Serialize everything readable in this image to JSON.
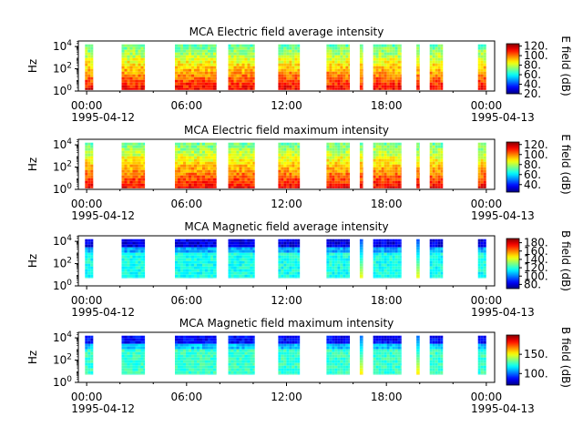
{
  "chart_data": [
    {
      "type": "heatmap",
      "title": "MCA  Electric field average intensity",
      "ylabel": "Hz",
      "colorbar_label": "E field (dB)",
      "colorbar_ticks": [
        "20.",
        "40.",
        "60.",
        "80.",
        "100.",
        "120."
      ],
      "colorbar_range": [
        20,
        125
      ],
      "y_ticks": [
        "10^0",
        "10^2",
        "10^4"
      ],
      "y_range_log10": [
        0,
        4.5
      ],
      "x_ticks": [
        "00:00",
        "06:00",
        "12:00",
        "18:00",
        "00:00"
      ],
      "x_dates": [
        "1995-04-12",
        "1995-04-13"
      ],
      "x_range_hours": [
        -0.5,
        24.5
      ],
      "data_intervals_hours": [
        [
          -0.1,
          0.4
        ],
        [
          2.1,
          3.5
        ],
        [
          5.3,
          7.8
        ],
        [
          8.5,
          10.1
        ],
        [
          11.5,
          12.8
        ],
        [
          14.4,
          15.8
        ],
        [
          16.4,
          16.6
        ],
        [
          17.2,
          18.9
        ],
        [
          19.8,
          20.0
        ],
        [
          20.6,
          21.4
        ],
        [
          23.5,
          24.0
        ]
      ],
      "data_freq_range_log10": [
        0.1,
        4.2
      ],
      "dominant_value_range_db": [
        60,
        120
      ],
      "colormap": "jet"
    },
    {
      "type": "heatmap",
      "title": "MCA  Electric field maximum intensity",
      "ylabel": "Hz",
      "colorbar_label": "E field (dB)",
      "colorbar_ticks": [
        "40.",
        "60.",
        "80.",
        "100.",
        "120."
      ],
      "colorbar_range": [
        25,
        125
      ],
      "y_ticks": [
        "10^0",
        "10^2",
        "10^4"
      ],
      "y_range_log10": [
        0,
        4.5
      ],
      "x_ticks": [
        "00:00",
        "06:00",
        "12:00",
        "18:00",
        "00:00"
      ],
      "x_dates": [
        "1995-04-12",
        "1995-04-13"
      ],
      "x_range_hours": [
        -0.5,
        24.5
      ],
      "data_intervals_hours": [
        [
          -0.1,
          0.4
        ],
        [
          2.1,
          3.5
        ],
        [
          5.3,
          7.8
        ],
        [
          8.5,
          10.1
        ],
        [
          11.5,
          12.8
        ],
        [
          14.4,
          15.8
        ],
        [
          16.4,
          16.6
        ],
        [
          17.2,
          18.9
        ],
        [
          19.8,
          20.0
        ],
        [
          20.6,
          21.4
        ],
        [
          23.5,
          24.0
        ]
      ],
      "data_freq_range_log10": [
        0.1,
        4.2
      ],
      "dominant_value_range_db": [
        65,
        120
      ],
      "colormap": "jet"
    },
    {
      "type": "heatmap",
      "title": "MCA  Magnetic field average intensity",
      "ylabel": "Hz",
      "colorbar_label": "B field (dB)",
      "colorbar_ticks": [
        "80.",
        "100.",
        "120.",
        "140.",
        "160.",
        "180."
      ],
      "colorbar_range": [
        70,
        190
      ],
      "y_ticks": [
        "10^0",
        "10^2",
        "10^4"
      ],
      "y_range_log10": [
        0,
        4.5
      ],
      "x_ticks": [
        "00:00",
        "06:00",
        "12:00",
        "18:00",
        "00:00"
      ],
      "x_dates": [
        "1995-04-12",
        "1995-04-13"
      ],
      "x_range_hours": [
        -0.5,
        24.5
      ],
      "data_intervals_hours": [
        [
          -0.1,
          0.4
        ],
        [
          2.1,
          3.5
        ],
        [
          5.3,
          7.8
        ],
        [
          8.5,
          10.1
        ],
        [
          11.5,
          12.8
        ],
        [
          14.4,
          15.8
        ],
        [
          16.4,
          16.6
        ],
        [
          17.2,
          18.9
        ],
        [
          19.8,
          20.0
        ],
        [
          20.6,
          21.4
        ],
        [
          23.5,
          24.0
        ]
      ],
      "data_freq_range_log10": [
        0.7,
        4.2
      ],
      "dominant_value_range_db": [
        75,
        140
      ],
      "colormap": "jet"
    },
    {
      "type": "heatmap",
      "title": "MCA  Magnetic field maximum intensity",
      "ylabel": "Hz",
      "colorbar_label": "B field (dB)",
      "colorbar_ticks": [
        "100.",
        "150."
      ],
      "colorbar_range": [
        70,
        200
      ],
      "y_ticks": [
        "10^0",
        "10^2",
        "10^4"
      ],
      "y_range_log10": [
        0,
        4.5
      ],
      "x_ticks": [
        "00:00",
        "06:00",
        "12:00",
        "18:00",
        "00:00"
      ],
      "x_dates": [
        "1995-04-12",
        "1995-04-13"
      ],
      "x_range_hours": [
        -0.5,
        24.5
      ],
      "data_intervals_hours": [
        [
          -0.1,
          0.4
        ],
        [
          2.1,
          3.5
        ],
        [
          5.3,
          7.8
        ],
        [
          8.5,
          10.1
        ],
        [
          11.5,
          12.8
        ],
        [
          14.4,
          15.8
        ],
        [
          16.4,
          16.6
        ],
        [
          17.2,
          18.9
        ],
        [
          19.8,
          20.0
        ],
        [
          20.6,
          21.4
        ],
        [
          23.5,
          24.0
        ]
      ],
      "data_freq_range_log10": [
        0.7,
        4.2
      ],
      "dominant_value_range_db": [
        80,
        150
      ],
      "colormap": "jet"
    }
  ]
}
